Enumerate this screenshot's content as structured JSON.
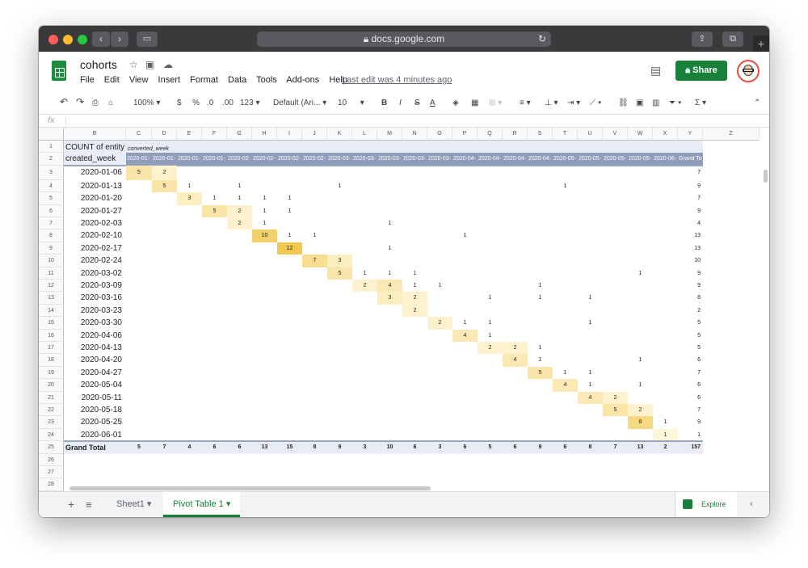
{
  "browser": {
    "url": "docs.google.com"
  },
  "doc": {
    "title": "cohorts",
    "last_edit": "Last edit was 4 minutes ago",
    "share_label": "Share"
  },
  "menu": [
    "File",
    "Edit",
    "View",
    "Insert",
    "Format",
    "Data",
    "Tools",
    "Add-ons",
    "Help"
  ],
  "toolbar": {
    "zoom": "100%",
    "currency": "$",
    "percent": "%",
    "dec_less": ".0",
    "dec_more": ".00",
    "num_format": "123",
    "font": "Default (Ari...",
    "font_size": "10",
    "bold": "B",
    "italic": "I",
    "strike": "S",
    "text_color": "A"
  },
  "formula": {
    "fx": "fx"
  },
  "columns": [
    "B",
    "C",
    "D",
    "E",
    "F",
    "G",
    "H",
    "I",
    "J",
    "K",
    "L",
    "M",
    "N",
    "O",
    "P",
    "Q",
    "R",
    "S",
    "T",
    "U",
    "V",
    "W",
    "X",
    "Y",
    "Z"
  ],
  "row_numbers": [
    "1",
    "2",
    "3",
    "4",
    "5",
    "6",
    "7",
    "8",
    "9",
    "10",
    "11",
    "12",
    "13",
    "14",
    "15",
    "16",
    "17",
    "18",
    "19",
    "20",
    "21",
    "22",
    "23",
    "24",
    "25",
    "26",
    "27",
    "28"
  ],
  "pivot": {
    "header_count": "COUNT of entity",
    "header_converted": "converted_week",
    "header_created": "created_week",
    "week_headers": [
      "2020-01-",
      "2020-01-",
      "2020-01-",
      "2020-01-",
      "2020-02-",
      "2020-02-",
      "2020-02-",
      "2020-02-",
      "2020-03-",
      "2020-03-",
      "2020-03-",
      "2020-03-",
      "2020-03-",
      "2020-04-",
      "2020-04-",
      "2020-04-",
      "2020-04-",
      "2020-05-",
      "2020-05-",
      "2020-05-",
      "2020-05-",
      "2020-06-"
    ],
    "grand_total_col": "Grand To",
    "rows": [
      {
        "label": "2020-01-06",
        "cells": {
          "0": "5",
          "1": "2"
        },
        "total": "7"
      },
      {
        "label": "2020-01-13",
        "cells": {
          "1": "5",
          "2": "1",
          "4": "1",
          "8": "1",
          "17": "1"
        },
        "total": "9"
      },
      {
        "label": "2020-01-20",
        "cells": {
          "2": "3",
          "3": "1",
          "4": "1",
          "5": "1",
          "6": "1"
        },
        "total": "7"
      },
      {
        "label": "2020-01-27",
        "cells": {
          "3": "5",
          "4": "2",
          "5": "1",
          "6": "1"
        },
        "total": "9"
      },
      {
        "label": "2020-02-03",
        "cells": {
          "4": "2",
          "5": "1",
          "10": "1"
        },
        "total": "4"
      },
      {
        "label": "2020-02-10",
        "cells": {
          "5": "10",
          "6": "1",
          "7": "1",
          "13": "1"
        },
        "total": "13"
      },
      {
        "label": "2020-02-17",
        "cells": {
          "6": "12",
          "10": "1"
        },
        "total": "13"
      },
      {
        "label": "2020-02-24",
        "cells": {
          "7": "7",
          "8": "3"
        },
        "total": "10"
      },
      {
        "label": "2020-03-02",
        "cells": {
          "8": "5",
          "9": "1",
          "10": "1",
          "11": "1",
          "20": "1"
        },
        "total": "9"
      },
      {
        "label": "2020-03-09",
        "cells": {
          "9": "2",
          "10": "4",
          "11": "1",
          "12": "1",
          "16": "1"
        },
        "total": "9"
      },
      {
        "label": "2020-03-16",
        "cells": {
          "10": "3",
          "11": "2",
          "14": "1",
          "16": "1",
          "18": "1"
        },
        "total": "8"
      },
      {
        "label": "2020-03-23",
        "cells": {
          "11": "2"
        },
        "total": "2"
      },
      {
        "label": "2020-03-30",
        "cells": {
          "12": "2",
          "13": "1",
          "14": "1",
          "18": "1"
        },
        "total": "5"
      },
      {
        "label": "2020-04-06",
        "cells": {
          "13": "4",
          "14": "1"
        },
        "total": "5"
      },
      {
        "label": "2020-04-13",
        "cells": {
          "14": "2",
          "15": "2",
          "16": "1"
        },
        "total": "5"
      },
      {
        "label": "2020-04-20",
        "cells": {
          "15": "4",
          "16": "1",
          "20": "1"
        },
        "total": "6"
      },
      {
        "label": "2020-04-27",
        "cells": {
          "16": "5",
          "17": "1",
          "18": "1"
        },
        "total": "7"
      },
      {
        "label": "2020-05-04",
        "cells": {
          "17": "4",
          "18": "1",
          "20": "1"
        },
        "total": "6"
      },
      {
        "label": "2020-05-11",
        "cells": {
          "18": "4",
          "19": "2"
        },
        "total": "6"
      },
      {
        "label": "2020-05-18",
        "cells": {
          "19": "5",
          "20": "2"
        },
        "total": "7"
      },
      {
        "label": "2020-05-25",
        "cells": {
          "20": "8",
          "21": "1"
        },
        "total": "9"
      },
      {
        "label": "2020-06-01",
        "cells": {
          "21": "1"
        },
        "total": "1"
      }
    ],
    "grand_total_label": "Grand Total",
    "grand_totals": [
      "5",
      "7",
      "4",
      "6",
      "6",
      "13",
      "15",
      "8",
      "9",
      "3",
      "10",
      "6",
      "3",
      "6",
      "5",
      "6",
      "9",
      "6",
      "8",
      "7",
      "13",
      "2"
    ],
    "grand_total_all": "157"
  },
  "tabs": {
    "sheet1": "Sheet1",
    "pivot": "Pivot Table 1",
    "explore": "Explore"
  }
}
